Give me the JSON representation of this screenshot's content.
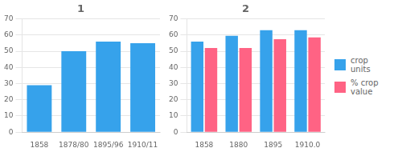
{
  "chart_data": [
    {
      "type": "bar",
      "title": "1",
      "categories": [
        "1858",
        "1878/80",
        "1895/96",
        "1910/11"
      ],
      "values": [
        29,
        50,
        56,
        55
      ],
      "color": "#36a2eb",
      "ylim": [
        0,
        70
      ],
      "yticks": [
        0,
        10,
        20,
        30,
        40,
        50,
        60,
        70
      ],
      "grid": true
    },
    {
      "type": "bar",
      "title": "2",
      "categories": [
        "1858",
        "1880",
        "1895",
        "1910.0"
      ],
      "series": [
        {
          "name": "crop\nunits",
          "color": "#36a2eb",
          "values": [
            56,
            59.5,
            63,
            63
          ]
        },
        {
          "name": "% crop\nvalue",
          "color": "#ff6384",
          "values": [
            52,
            52,
            57.5,
            58.5
          ]
        }
      ],
      "ylim": [
        0,
        70
      ],
      "yticks": [
        0,
        10,
        20,
        30,
        40,
        50,
        60,
        70
      ],
      "grid": true,
      "legend": "right"
    }
  ]
}
